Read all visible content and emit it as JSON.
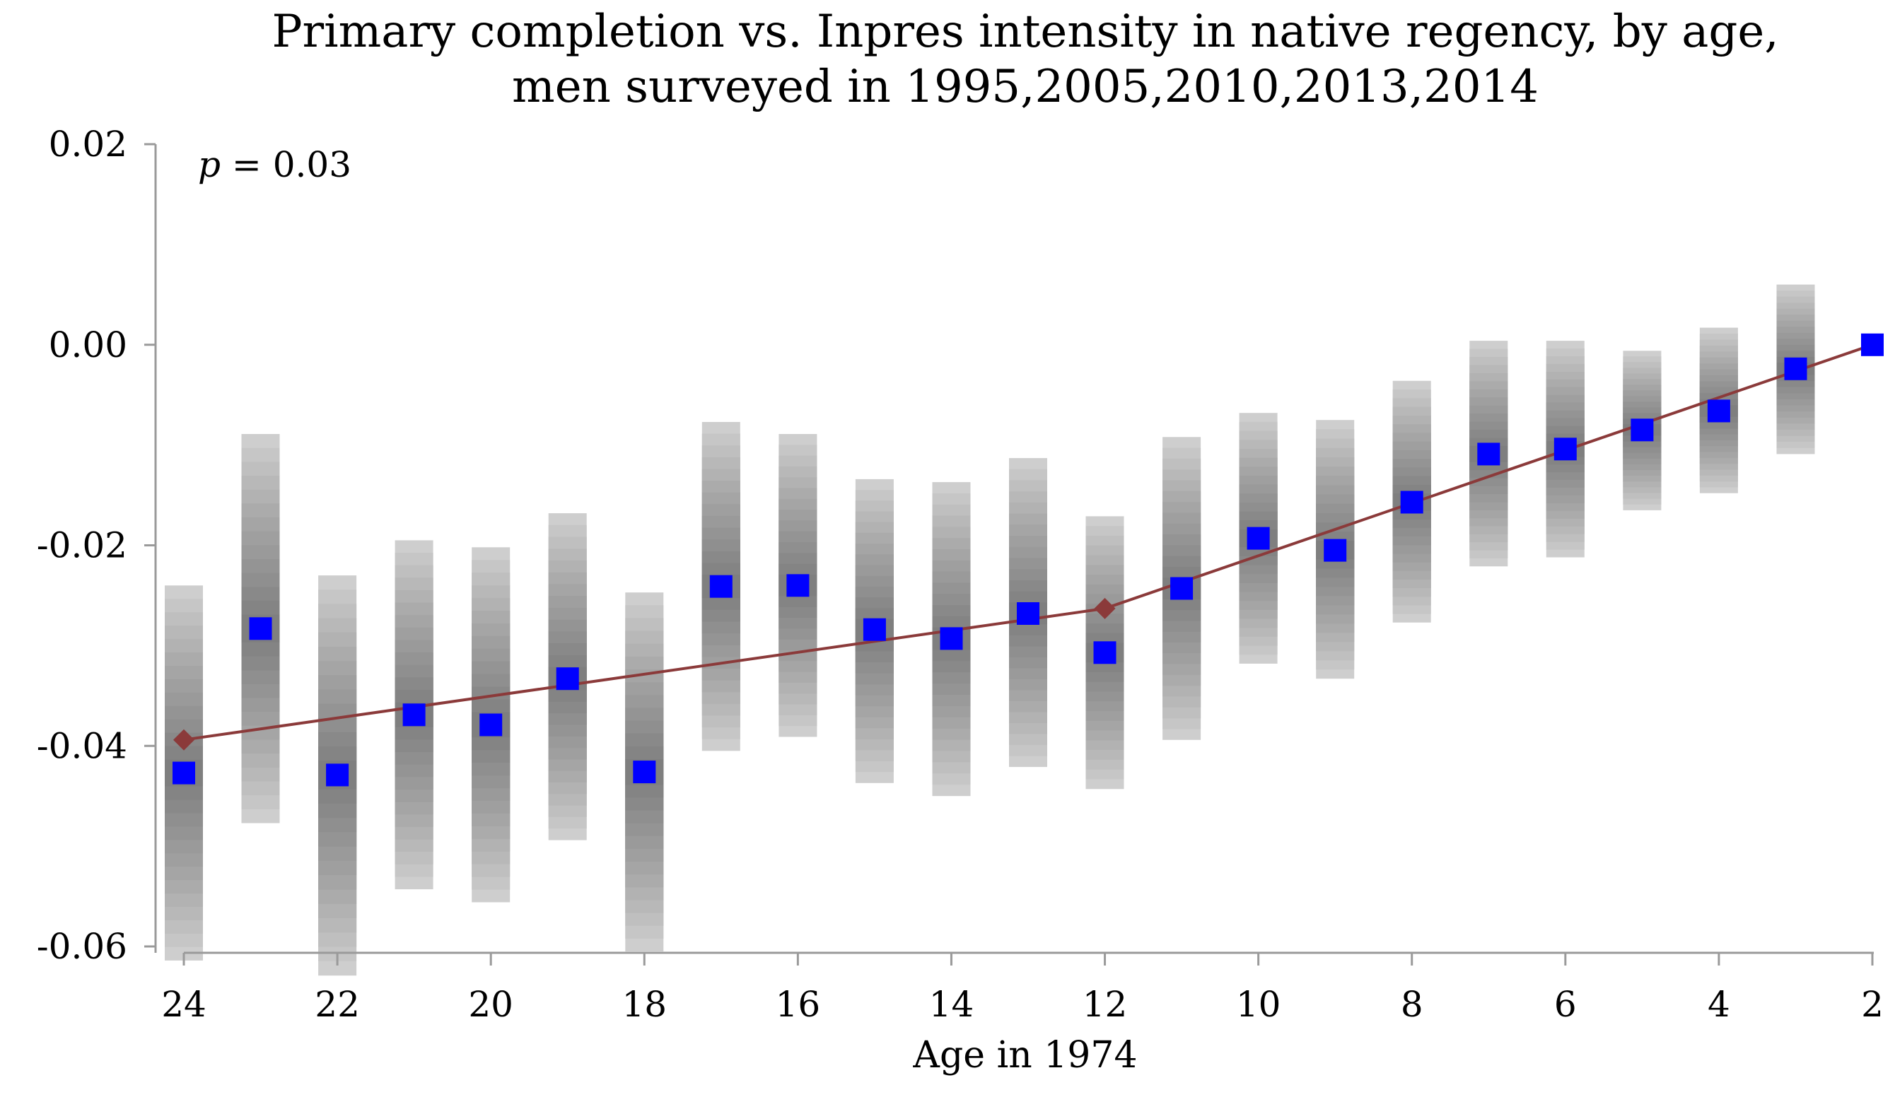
{
  "chart_data": {
    "type": "scatter",
    "title_line1": "Primary completion vs. Inpres intensity in native regency, by age,",
    "title_line2": "men surveyed in 1995,2005,2010,2013,2014",
    "xlabel": "Age in 1974",
    "ylabel": "",
    "annotation": {
      "p_symbol": "p",
      "p_text": " = 0.03"
    },
    "x_reversed": true,
    "xlim": [
      24,
      2
    ],
    "ylim": [
      -0.065,
      0.02
    ],
    "x_ticks": [
      24,
      22,
      20,
      18,
      16,
      14,
      12,
      10,
      8,
      6,
      4,
      2
    ],
    "x_tick_labels": [
      "24",
      "22",
      "20",
      "18",
      "16",
      "14",
      "12",
      "10",
      "8",
      "6",
      "4",
      "2"
    ],
    "y_ticks": [
      0.02,
      0.0,
      -0.02,
      -0.04,
      -0.06
    ],
    "y_tick_labels": [
      "0.02",
      "0.00",
      "-0.02",
      "-0.04",
      "-0.06"
    ],
    "estimates": {
      "ages": [
        24,
        23,
        22,
        21,
        20,
        19,
        18,
        17,
        16,
        15,
        14,
        13,
        12,
        11,
        10,
        9,
        8,
        7,
        6,
        5,
        4,
        3,
        2
      ],
      "values": [
        -0.0427,
        -0.0283,
        -0.0429,
        -0.0369,
        -0.0379,
        -0.0333,
        -0.0426,
        -0.0241,
        -0.024,
        -0.0284,
        -0.0293,
        -0.0268,
        -0.0307,
        -0.0243,
        -0.0193,
        -0.0205,
        -0.0157,
        -0.0109,
        -0.0104,
        -0.0085,
        -0.0066,
        -0.0024,
        0.0
      ],
      "ci_low": [
        -0.0614,
        -0.0477,
        -0.0629,
        -0.0543,
        -0.0556,
        -0.0494,
        -0.0605,
        -0.0405,
        -0.0391,
        -0.0437,
        -0.045,
        -0.0421,
        -0.0443,
        -0.0394,
        -0.0318,
        -0.0333,
        -0.0277,
        -0.0221,
        -0.0212,
        -0.0165,
        -0.0148,
        -0.0109,
        0.0
      ],
      "ci_high": [
        -0.024,
        -0.0089,
        -0.023,
        -0.0195,
        -0.0202,
        -0.0168,
        -0.0247,
        -0.0077,
        -0.0089,
        -0.0134,
        -0.0137,
        -0.0113,
        -0.0171,
        -0.0092,
        -0.0068,
        -0.0075,
        -0.0036,
        0.0004,
        0.0004,
        -0.0006,
        0.0017,
        0.006,
        0.0
      ],
      "marker_color": "#0000ff",
      "band_color_dark": "#7f7f7f",
      "band_color_light": "#d9d9d9"
    },
    "fit_line": {
      "x": [
        24,
        12,
        2
      ],
      "y": [
        -0.0394,
        -0.0263,
        0.0
      ],
      "knot_ages": [
        24,
        12
      ],
      "color": "#8b3a3a"
    }
  }
}
